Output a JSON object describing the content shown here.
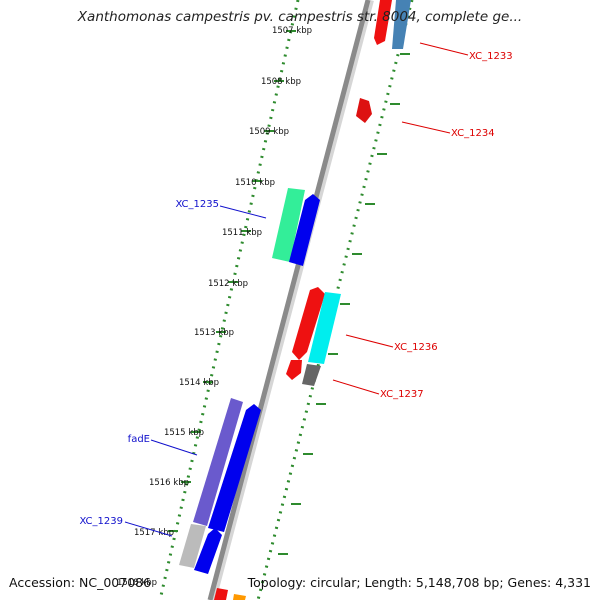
{
  "title": "Xanthomonas campestris pv. campestris str. 8004, complete ge...",
  "footer": {
    "accession": "Accession: NC_007086",
    "topology": "Topology: circular; Length: 5,148,708 bp; Genes: 4,331"
  },
  "colors": {
    "backbone": "#8a8a8a",
    "tick_dots": "#2e8b2e",
    "label_red": "#dd0000",
    "label_blue": "#1010cc"
  },
  "kbp_labels": [
    "1507 kbp",
    "1508 kbp",
    "1509 kbp",
    "1510 kbp",
    "1511 kbp",
    "1512 kbp",
    "1513 kbp",
    "1514 kbp",
    "1515 kbp",
    "1516 kbp",
    "1517 kbp",
    "1518 kbp"
  ],
  "gene_labels": [
    {
      "text": "XC_1233",
      "color": "red"
    },
    {
      "text": "XC_1234",
      "color": "red"
    },
    {
      "text": "XC_1235",
      "color": "blue"
    },
    {
      "text": "XC_1236",
      "color": "red"
    },
    {
      "text": "XC_1237",
      "color": "red"
    },
    {
      "text": "fadE",
      "color": "blue"
    },
    {
      "text": "XC_1239",
      "color": "blue"
    }
  ],
  "genes": [
    {
      "name": "XC_1233 (red)",
      "color": "#ee1111"
    },
    {
      "name": "XC_1233 (steelblue)",
      "color": "#4682b4"
    },
    {
      "name": "XC_1234",
      "color": "#dd1111"
    },
    {
      "name": "XC_1235",
      "color": "#33ee99"
    },
    {
      "name": "XC_1235 cds",
      "color": "#0000ee"
    },
    {
      "name": "XC_1236",
      "color": "#ee1111"
    },
    {
      "name": "XC_1236 cds",
      "color": "#00eeee"
    },
    {
      "name": "XC_1237",
      "color": "#ee1111"
    },
    {
      "name": "XC_1237 cds",
      "color": "#666666"
    },
    {
      "name": "fadE",
      "color": "#6a5acd"
    },
    {
      "name": "fadE cds",
      "color": "#0000ee"
    },
    {
      "name": "XC_1239",
      "color": "#bbbbbb"
    },
    {
      "name": "XC_1239 cds",
      "color": "#0000ee"
    },
    {
      "name": "next (red)",
      "color": "#ee1111"
    },
    {
      "name": "next (orange)",
      "color": "#ff9900"
    }
  ]
}
